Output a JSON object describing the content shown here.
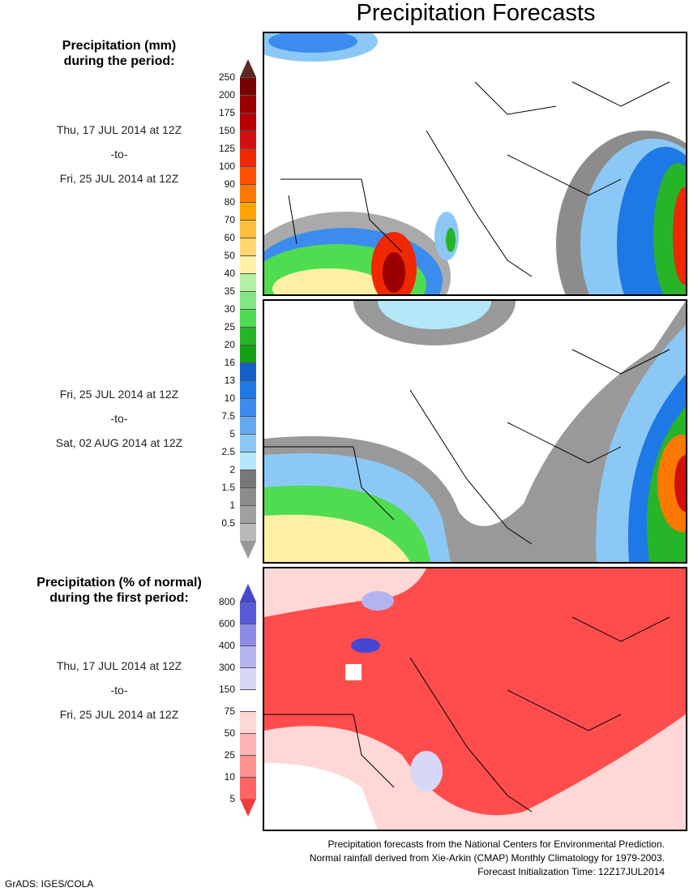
{
  "title": "Precipitation Forecasts",
  "legend1": {
    "heading1": "Precipitation (mm)",
    "heading2": "during the period:",
    "ticks": [
      "250",
      "200",
      "175",
      "150",
      "125",
      "100",
      "90",
      "80",
      "70",
      "60",
      "50",
      "40",
      "35",
      "30",
      "25",
      "20",
      "16",
      "13",
      "10",
      "7.5",
      "5",
      "2.5",
      "2",
      "1.5",
      "1",
      "0.5"
    ],
    "top_color": "#5a2a20",
    "bottom_color": "#ffffff",
    "colors": [
      "#7a0000",
      "#9b0000",
      "#b80000",
      "#d20f0f",
      "#f02800",
      "#ff5000",
      "#ff7800",
      "#ffa500",
      "#ffbe3c",
      "#ffd76e",
      "#fff0a5",
      "#b4f0a5",
      "#82e682",
      "#50dc50",
      "#28b428",
      "#14a014",
      "#1460c8",
      "#1e78e6",
      "#3c8cf0",
      "#64aaf0",
      "#8cc8f5",
      "#b4e8f8",
      "#787878",
      "#8c8c8c",
      "#a0a0a0",
      "#b9b9b9"
    ]
  },
  "period1": {
    "from": "Thu, 17 JUL 2014 at 12Z",
    "sep": "-to-",
    "to": "Fri, 25 JUL 2014 at 12Z"
  },
  "period2": {
    "from": "Fri, 25 JUL 2014 at 12Z",
    "sep": "-to-",
    "to": "Sat, 02 AUG 2014 at 12Z"
  },
  "legend2": {
    "heading1": "Precipitation (% of normal)",
    "heading2": "during the first period:",
    "ticks": [
      "800",
      "600",
      "400",
      "300",
      "150",
      "75",
      "50",
      "25",
      "10",
      "5"
    ],
    "top_color": "#4646d2",
    "bottom_color": "#f03c3c",
    "colors": [
      "#5a5ad7",
      "#8c8ce6",
      "#b4b4f0",
      "#d7d7f8",
      "#ffffff",
      "#ffd7d7",
      "#ffb4b4",
      "#ff9191",
      "#ff6464"
    ]
  },
  "period3": {
    "from": "Thu, 17 JUL 2014 at 12Z",
    "sep": "-to-",
    "to": "Fri, 25 JUL 2014 at 12Z"
  },
  "footer": {
    "line1": "Precipitation forecasts from the National Centers for Environmental Prediction.",
    "line2": "Normal rainfall derived from Xie-Arkin (CMAP) Monthly Climatology for 1979-2003.",
    "line3": "Forecast Initialization Time: 12Z17JUL2014"
  },
  "credit": "GrADS: IGES/COLA"
}
